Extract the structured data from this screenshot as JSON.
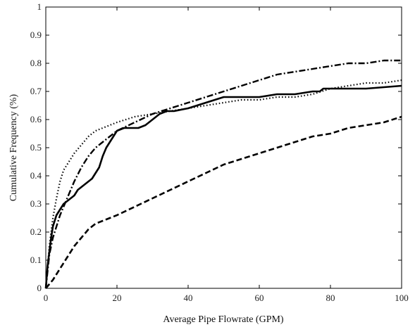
{
  "chart_data": {
    "type": "line",
    "title": "",
    "xlabel": "Average Pipe Flowrate (GPM)",
    "ylabel": "Cumulative Frequency (%)",
    "xlim": [
      0,
      100
    ],
    "ylim": [
      0,
      1
    ],
    "x_ticks": [
      "0",
      "20",
      "40",
      "60",
      "80",
      "100"
    ],
    "y_ticks": [
      "0",
      "0.1",
      "0.2",
      "0.3",
      "0.4",
      "0.5",
      "0.6",
      "0.7",
      "0.8",
      "0.9",
      "1"
    ],
    "grid": false,
    "legend": "none",
    "series": [
      {
        "style": "solid",
        "x": [
          0,
          0.5,
          1,
          1.5,
          2,
          3,
          4,
          5,
          6,
          7,
          8,
          9,
          10,
          11,
          12,
          13,
          14,
          15,
          16,
          17,
          18,
          19,
          20,
          22,
          24,
          26,
          28,
          30,
          32,
          34,
          36,
          40,
          45,
          50,
          55,
          60,
          65,
          70,
          75,
          77,
          78,
          80,
          85,
          90,
          95,
          100
        ],
        "y": [
          0.0,
          0.08,
          0.13,
          0.18,
          0.22,
          0.26,
          0.28,
          0.3,
          0.31,
          0.32,
          0.33,
          0.35,
          0.36,
          0.37,
          0.38,
          0.39,
          0.41,
          0.43,
          0.47,
          0.5,
          0.52,
          0.54,
          0.56,
          0.57,
          0.57,
          0.57,
          0.58,
          0.6,
          0.62,
          0.63,
          0.63,
          0.64,
          0.66,
          0.68,
          0.68,
          0.68,
          0.69,
          0.69,
          0.7,
          0.7,
          0.71,
          0.71,
          0.71,
          0.71,
          0.715,
          0.72
        ]
      },
      {
        "style": "dotted",
        "x": [
          0,
          1,
          2,
          3,
          4,
          5,
          6,
          7,
          8,
          10,
          12,
          14,
          16,
          18,
          20,
          25,
          30,
          35,
          40,
          45,
          50,
          55,
          60,
          65,
          70,
          75,
          80,
          85,
          90,
          95,
          100
        ],
        "y": [
          0.0,
          0.15,
          0.25,
          0.32,
          0.38,
          0.42,
          0.44,
          0.46,
          0.48,
          0.51,
          0.54,
          0.56,
          0.57,
          0.58,
          0.59,
          0.61,
          0.62,
          0.63,
          0.64,
          0.65,
          0.66,
          0.67,
          0.67,
          0.68,
          0.68,
          0.69,
          0.71,
          0.72,
          0.73,
          0.73,
          0.74
        ]
      },
      {
        "style": "dash-dot",
        "x": [
          0,
          1,
          2,
          3,
          4,
          5,
          6,
          7,
          8,
          10,
          12,
          14,
          16,
          18,
          20,
          25,
          30,
          35,
          40,
          45,
          50,
          55,
          60,
          65,
          70,
          75,
          80,
          85,
          90,
          95,
          100
        ],
        "y": [
          0.0,
          0.12,
          0.18,
          0.22,
          0.26,
          0.29,
          0.32,
          0.35,
          0.38,
          0.43,
          0.47,
          0.5,
          0.52,
          0.54,
          0.56,
          0.59,
          0.62,
          0.64,
          0.66,
          0.68,
          0.7,
          0.72,
          0.74,
          0.76,
          0.77,
          0.78,
          0.79,
          0.8,
          0.8,
          0.81,
          0.81
        ]
      },
      {
        "style": "dashed",
        "x": [
          0,
          2,
          4,
          6,
          8,
          10,
          12,
          14,
          16,
          18,
          20,
          25,
          30,
          35,
          40,
          45,
          50,
          55,
          60,
          65,
          70,
          75,
          80,
          85,
          90,
          95,
          100
        ],
        "y": [
          0.0,
          0.03,
          0.07,
          0.11,
          0.15,
          0.18,
          0.21,
          0.23,
          0.24,
          0.25,
          0.26,
          0.29,
          0.32,
          0.35,
          0.38,
          0.41,
          0.44,
          0.46,
          0.48,
          0.5,
          0.52,
          0.54,
          0.55,
          0.57,
          0.58,
          0.59,
          0.61
        ]
      }
    ]
  }
}
